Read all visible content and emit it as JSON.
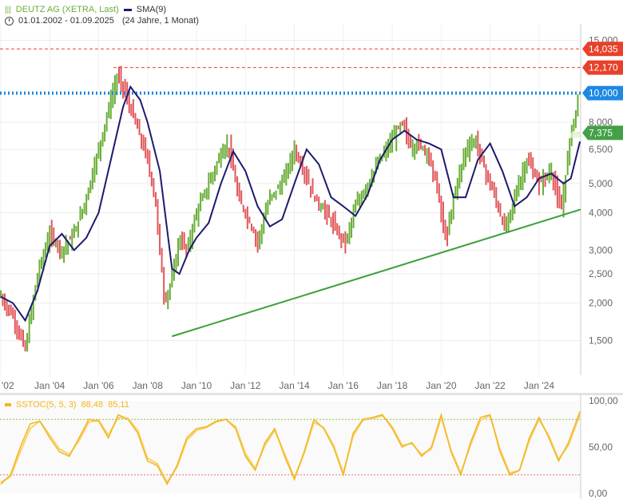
{
  "chart_data": [
    {
      "type": "ohlc",
      "title": "DEUTZ AG (XETRA, Last)",
      "period": "01.01.2002 - 01.09.2025",
      "period_note": "(24 Jahre, 1 Monat)",
      "scale": "log",
      "ylim": [
        1.15,
        17.0
      ],
      "y_ticks": [
        "1,500",
        "2,000",
        "2,500",
        "3,000",
        "4,000",
        "5,000",
        "6,500",
        "8,000",
        "15,000"
      ],
      "x_ticks": [
        "'02",
        "Jan '04",
        "Jan '06",
        "Jan '08",
        "Jan '10",
        "Jan '12",
        "Jan '14",
        "Jan '16",
        "Jan '18",
        "Jan '20",
        "Jan '22",
        "Jan '24"
      ],
      "series": [
        {
          "name": "DEUTZ AG (XETRA, Last)",
          "type": "ohlc",
          "x": [
            2002.0,
            2002.5,
            2003.0,
            2003.5,
            2004.0,
            2004.5,
            2005.0,
            2005.5,
            2006.0,
            2006.5,
            2006.8,
            2007.0,
            2007.5,
            2008.0,
            2008.3,
            2008.7,
            2009.0,
            2009.3,
            2009.6,
            2010.0,
            2010.5,
            2011.0,
            2011.3,
            2011.7,
            2012.0,
            2012.5,
            2013.0,
            2013.5,
            2014.0,
            2014.4,
            2014.8,
            2015.3,
            2015.8,
            2016.1,
            2016.5,
            2017.0,
            2017.5,
            2018.0,
            2018.4,
            2018.8,
            2019.0,
            2019.4,
            2019.8,
            2020.2,
            2020.5,
            2021.0,
            2021.4,
            2021.8,
            2022.2,
            2022.6,
            2023.0,
            2023.5,
            2024.0,
            2024.5,
            2024.9,
            2025.3,
            2025.67
          ],
          "close": [
            2.1,
            1.8,
            1.4,
            2.5,
            3.4,
            3.0,
            3.4,
            4.5,
            6.5,
            9.5,
            11.5,
            10.5,
            8.0,
            6.0,
            4.5,
            2.0,
            2.4,
            3.3,
            3.0,
            4.0,
            5.0,
            6.3,
            6.8,
            4.5,
            4.0,
            3.2,
            4.5,
            5.0,
            6.5,
            5.5,
            4.5,
            4.0,
            3.4,
            3.2,
            4.2,
            5.0,
            6.0,
            7.0,
            8.0,
            6.5,
            6.8,
            6.5,
            5.0,
            3.2,
            4.5,
            6.5,
            7.0,
            5.5,
            4.5,
            3.5,
            4.5,
            6.0,
            5.0,
            5.5,
            4.0,
            7.5,
            10.0
          ]
        },
        {
          "name": "SMA(9)",
          "type": "line",
          "x": [
            2002.0,
            2002.5,
            2003.0,
            2003.5,
            2004.0,
            2004.5,
            2005.0,
            2005.5,
            2006.0,
            2006.5,
            2007.0,
            2007.3,
            2007.7,
            2008.0,
            2008.5,
            2009.0,
            2009.3,
            2009.7,
            2010.0,
            2010.5,
            2011.0,
            2011.5,
            2012.0,
            2012.5,
            2013.0,
            2013.5,
            2014.0,
            2014.5,
            2015.0,
            2015.5,
            2016.0,
            2016.5,
            2017.0,
            2017.5,
            2018.0,
            2018.5,
            2019.0,
            2019.5,
            2020.0,
            2020.5,
            2021.0,
            2021.5,
            2022.0,
            2022.5,
            2023.0,
            2023.5,
            2024.0,
            2024.5,
            2025.0,
            2025.3,
            2025.67
          ],
          "values": [
            2.1,
            2.0,
            1.75,
            2.2,
            3.1,
            3.4,
            3.0,
            3.3,
            4.0,
            6.0,
            9.0,
            10.5,
            9.5,
            8.0,
            5.5,
            2.6,
            2.5,
            3.0,
            3.3,
            3.7,
            5.0,
            6.4,
            5.5,
            4.2,
            3.6,
            3.8,
            5.0,
            6.5,
            5.8,
            4.5,
            4.2,
            3.9,
            4.6,
            6.0,
            7.0,
            7.5,
            7.0,
            6.8,
            6.5,
            4.5,
            4.5,
            6.0,
            6.8,
            5.5,
            4.2,
            4.5,
            5.2,
            5.4,
            5.0,
            5.2,
            6.9
          ]
        },
        {
          "name": "Trendlinie",
          "type": "line",
          "x": [
            2009.0,
            2025.7
          ],
          "values": [
            1.55,
            4.1
          ]
        }
      ],
      "horizontal_lines": [
        {
          "label": "14,035",
          "value": 14.035,
          "style": "dashed",
          "color": "#e8402a"
        },
        {
          "label": "12,170",
          "value": 12.17,
          "style": "dashed",
          "color": "#e8402a"
        },
        {
          "label": "10,000",
          "value": 10.0,
          "style": "dotted",
          "color": "#1e88e5"
        },
        {
          "label": "7,375",
          "value": 7.375,
          "style": "dashed",
          "color": "#43a047"
        }
      ]
    },
    {
      "type": "line",
      "title": "SSTOC(5, 5, 3)",
      "legend_values": [
        "88,48",
        "85,11"
      ],
      "ylim": [
        0,
        100
      ],
      "y_ticks": [
        "0,00",
        "50,00",
        "100,00"
      ],
      "bands": {
        "upper": 80,
        "lower": 20
      },
      "series": [
        {
          "name": "SSTOC(5, 5, 3)",
          "x": [
            2002.0,
            2002.4,
            2002.8,
            2003.2,
            2003.6,
            2004.0,
            2004.4,
            2004.8,
            2005.2,
            2005.6,
            2006.0,
            2006.4,
            2006.8,
            2007.2,
            2007.6,
            2008.0,
            2008.4,
            2008.8,
            2009.2,
            2009.6,
            2010.0,
            2010.4,
            2010.8,
            2011.2,
            2011.6,
            2012.0,
            2012.4,
            2012.8,
            2013.2,
            2013.6,
            2014.0,
            2014.4,
            2014.8,
            2015.2,
            2015.6,
            2016.0,
            2016.4,
            2016.8,
            2017.2,
            2017.6,
            2018.0,
            2018.4,
            2018.8,
            2019.2,
            2019.6,
            2020.0,
            2020.4,
            2020.8,
            2021.2,
            2021.6,
            2022.0,
            2022.4,
            2022.8,
            2023.2,
            2023.6,
            2024.0,
            2024.4,
            2024.8,
            2025.2,
            2025.67
          ],
          "values": [
            10,
            20,
            50,
            75,
            78,
            60,
            45,
            40,
            60,
            80,
            78,
            60,
            85,
            80,
            65,
            35,
            30,
            10,
            30,
            60,
            70,
            72,
            78,
            80,
            70,
            40,
            25,
            55,
            70,
            40,
            15,
            45,
            80,
            70,
            50,
            20,
            65,
            80,
            82,
            85,
            70,
            50,
            55,
            40,
            50,
            85,
            45,
            20,
            55,
            82,
            85,
            45,
            20,
            25,
            60,
            82,
            60,
            35,
            55,
            88.48
          ]
        },
        {
          "name": "Signal",
          "values": [
            12,
            18,
            45,
            70,
            78,
            63,
            48,
            42,
            57,
            77,
            79,
            63,
            82,
            81,
            68,
            38,
            32,
            12,
            28,
            57,
            68,
            71,
            77,
            80,
            72,
            43,
            27,
            52,
            68,
            43,
            17,
            43,
            77,
            71,
            52,
            22,
            62,
            79,
            81,
            84,
            72,
            52,
            54,
            42,
            48,
            82,
            47,
            22,
            52,
            79,
            84,
            48,
            22,
            25,
            57,
            80,
            62,
            37,
            52,
            85.11
          ]
        }
      ]
    }
  ]
}
